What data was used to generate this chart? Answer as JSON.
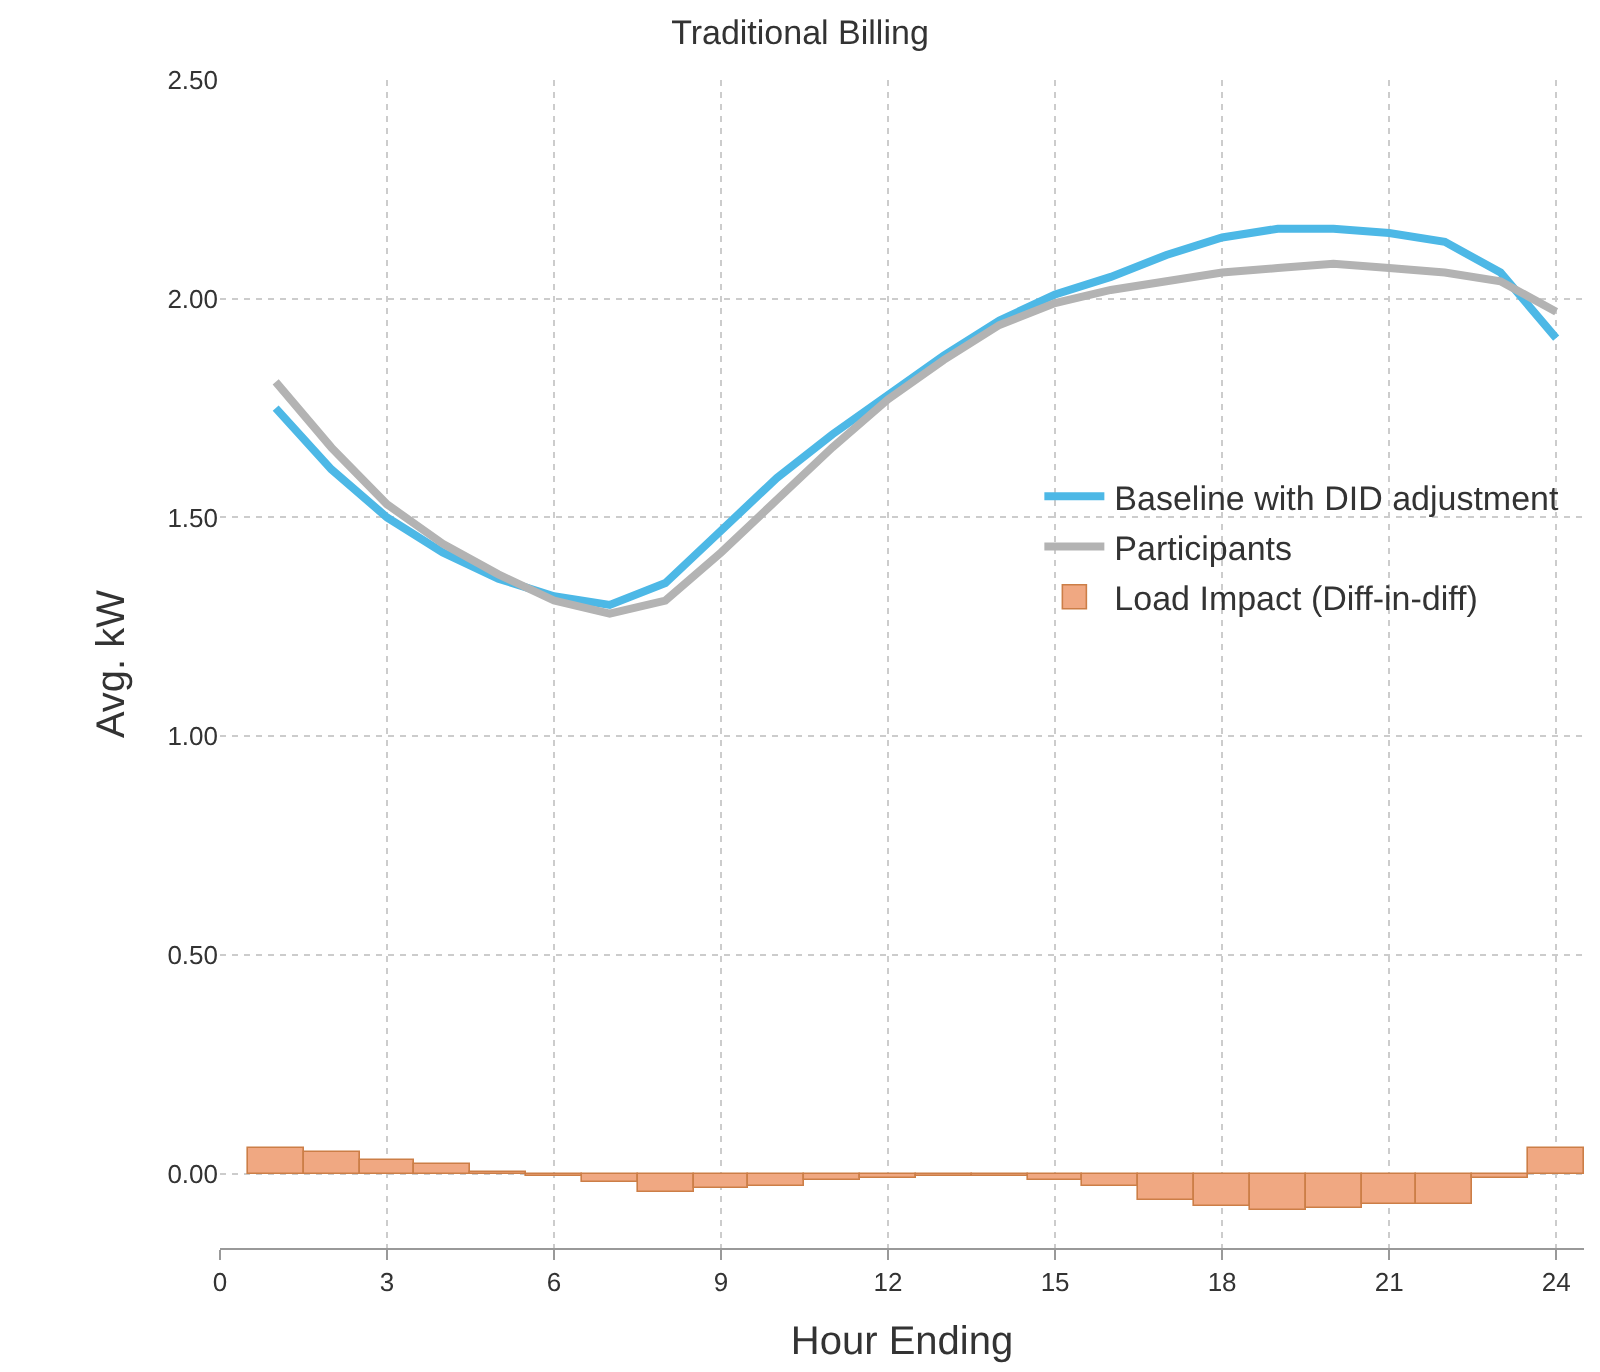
{
  "chart_data": {
    "type": "line",
    "title": "Traditional Billing",
    "xlabel": "Hour Ending",
    "ylabel": "Avg. kW",
    "x": [
      1,
      2,
      3,
      4,
      5,
      6,
      7,
      8,
      9,
      10,
      11,
      12,
      13,
      14,
      15,
      16,
      17,
      18,
      19,
      20,
      21,
      22,
      23,
      24
    ],
    "series": [
      {
        "name": "Baseline with DID adjustment",
        "color": "#4db8e6",
        "values": [
          1.75,
          1.61,
          1.5,
          1.42,
          1.36,
          1.32,
          1.3,
          1.35,
          1.47,
          1.59,
          1.69,
          1.78,
          1.87,
          1.95,
          2.01,
          2.05,
          2.1,
          2.14,
          2.16,
          2.16,
          2.15,
          2.13,
          2.06,
          1.91
        ]
      },
      {
        "name": "Participants",
        "color": "#b3b3b3",
        "values": [
          1.81,
          1.66,
          1.53,
          1.44,
          1.37,
          1.31,
          1.28,
          1.31,
          1.42,
          1.54,
          1.66,
          1.77,
          1.86,
          1.94,
          1.99,
          2.02,
          2.04,
          2.06,
          2.07,
          2.08,
          2.07,
          2.06,
          2.04,
          1.97
        ]
      },
      {
        "name": "Load Impact (Diff-in-diff)",
        "type": "bar",
        "color": "#f0a882",
        "values": [
          0.06,
          0.05,
          0.03,
          0.02,
          0.005,
          -0.006,
          -0.02,
          -0.04,
          -0.035,
          -0.03,
          -0.015,
          -0.01,
          -0.005,
          -0.005,
          -0.015,
          -0.03,
          -0.06,
          -0.075,
          -0.085,
          -0.08,
          -0.07,
          -0.07,
          -0.01,
          0.06
        ]
      }
    ],
    "xlim": [
      0,
      24.5
    ],
    "xticks": [
      0,
      3,
      6,
      9,
      12,
      15,
      18,
      21,
      24
    ],
    "ylim": [
      -0.17,
      2.5
    ],
    "yticks": [
      {
        "value": 0,
        "label": "0.00"
      },
      {
        "value": 0.5,
        "label": "0.50"
      },
      {
        "value": 1,
        "label": "1.00"
      },
      {
        "value": 1.5,
        "label": "1.50"
      },
      {
        "value": 2,
        "label": "2.00"
      },
      {
        "value": 2.5,
        "label": "2.50"
      }
    ],
    "grid": true,
    "legend": "right",
    "marker": "none"
  }
}
